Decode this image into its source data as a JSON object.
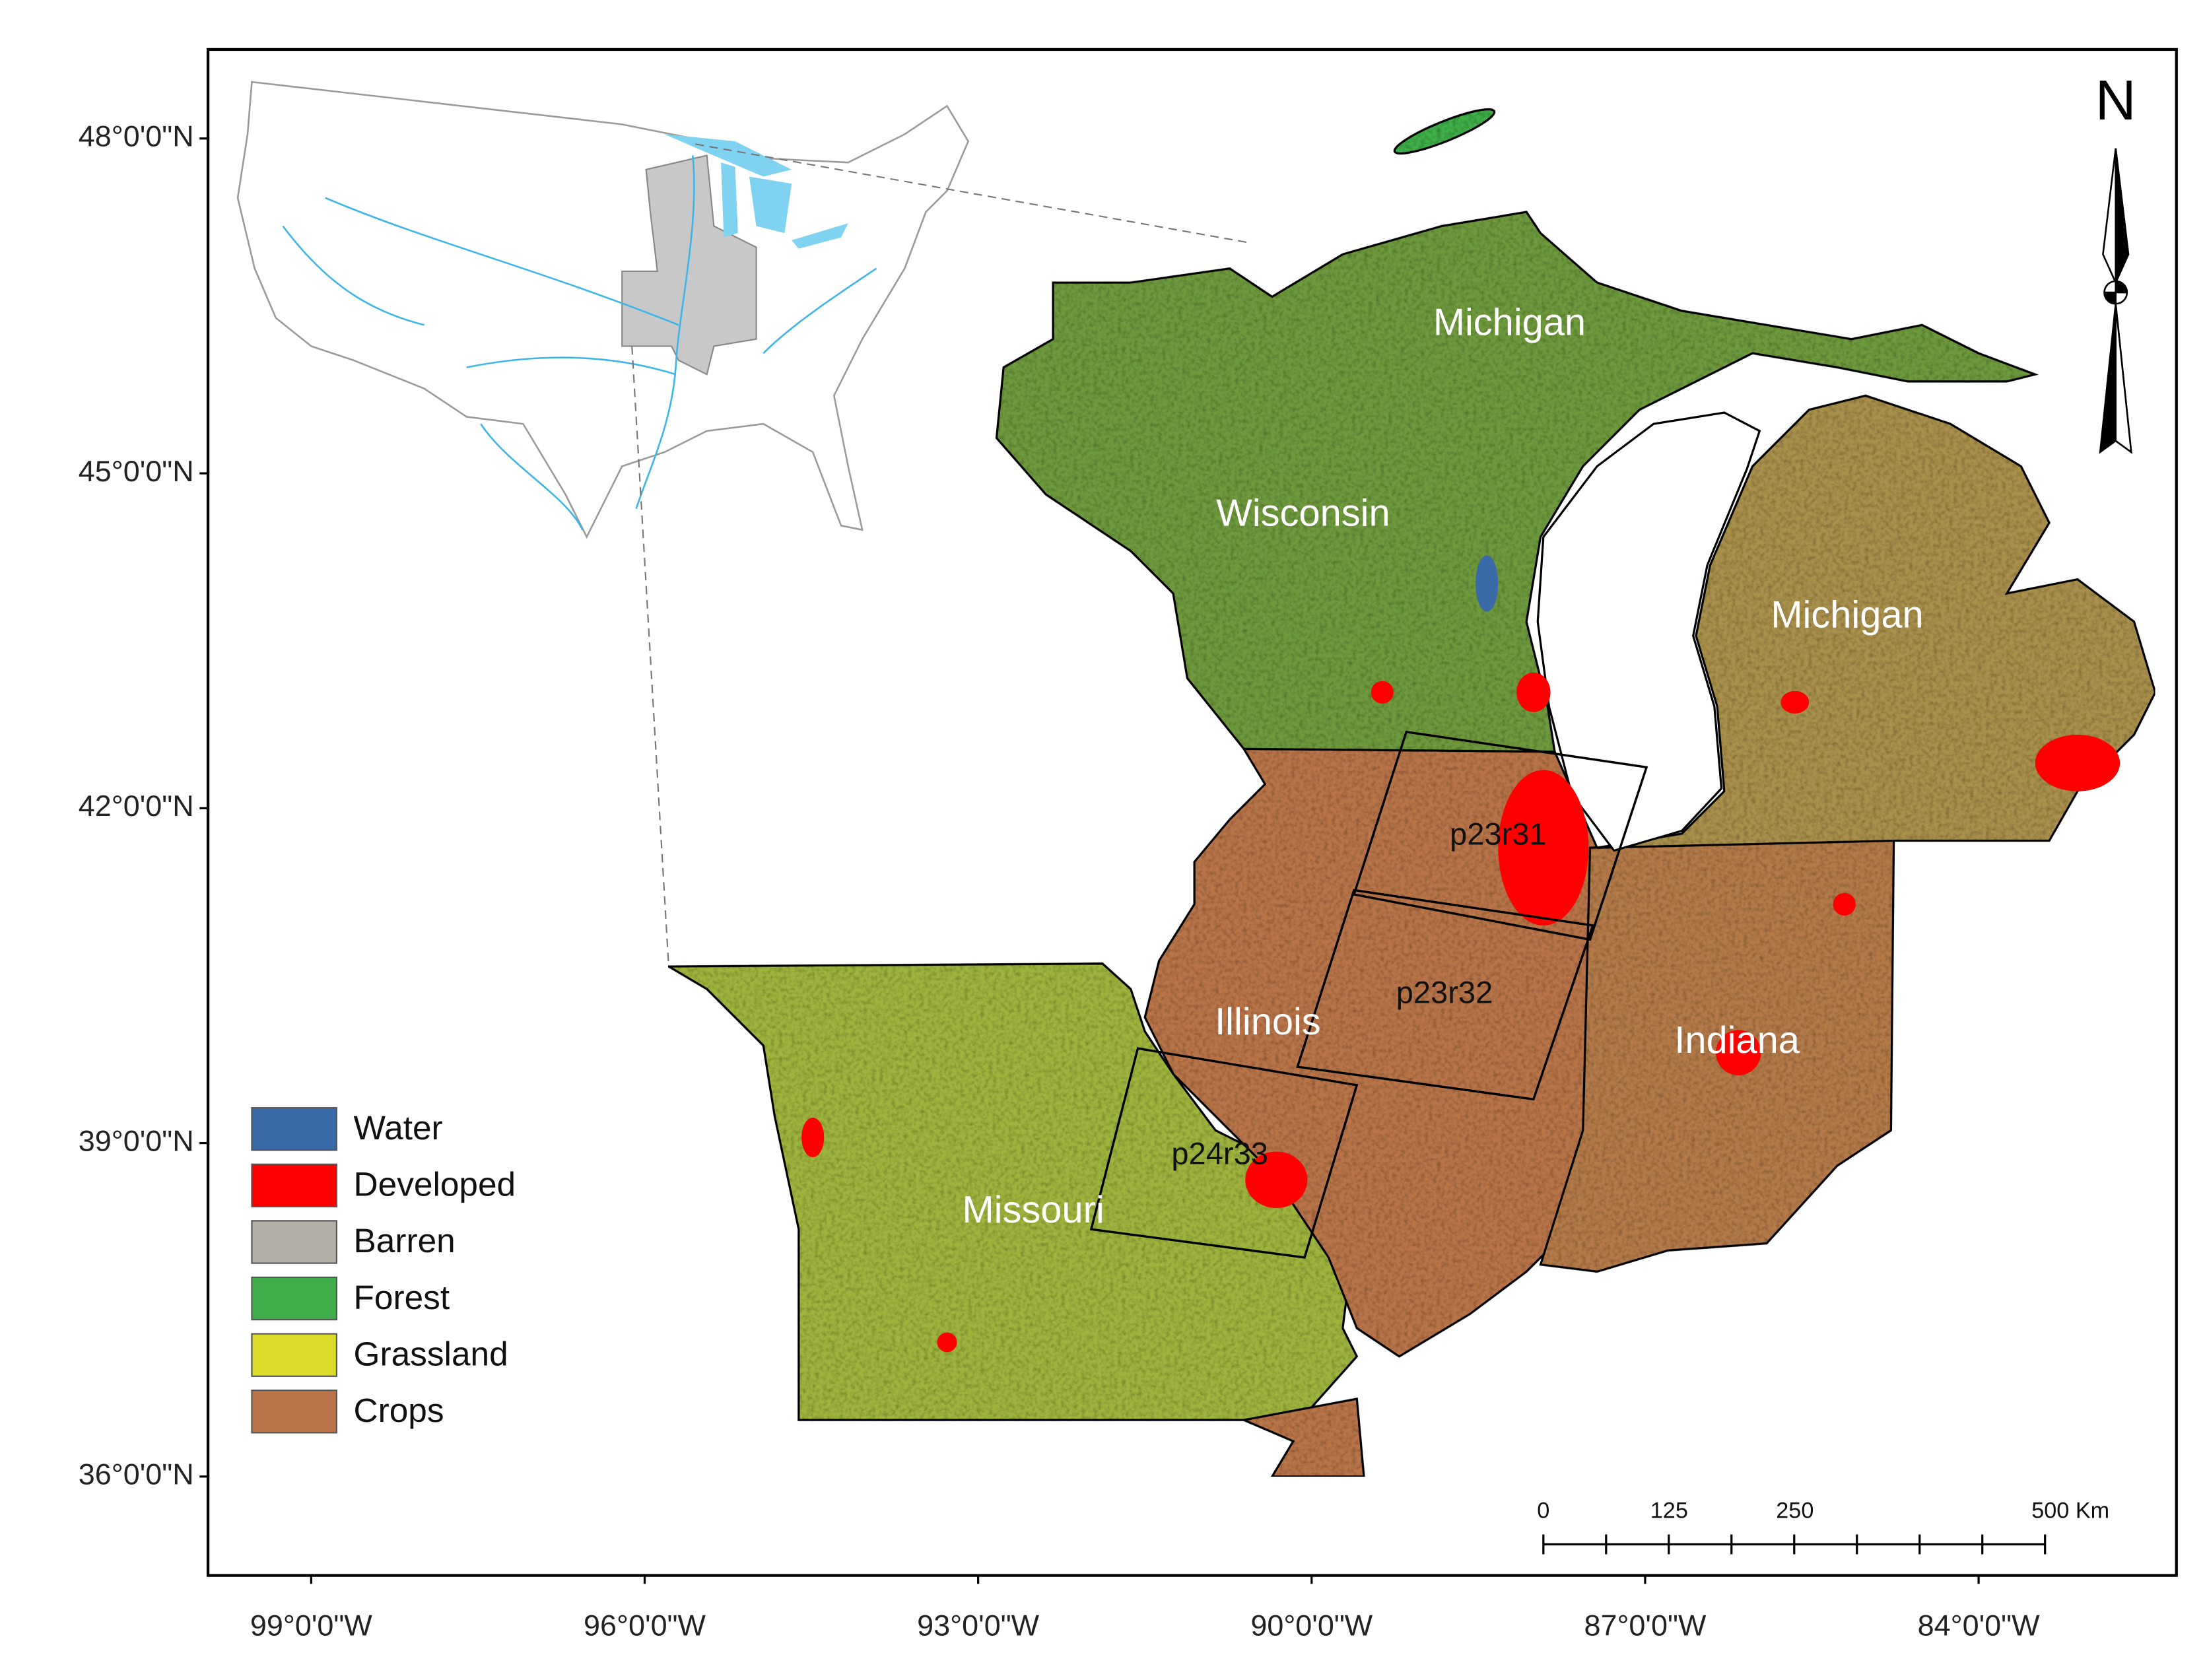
{
  "north": "N",
  "lat_labels": [
    "48°0'0\"N",
    "45°0'0\"N",
    "42°0'0\"N",
    "39°0'0\"N",
    "36°0'0\"N"
  ],
  "lon_labels": [
    "99°0'0\"W",
    "96°0'0\"W",
    "93°0'0\"W",
    "90°0'0\"W",
    "87°0'0\"W",
    "84°0'0\"W"
  ],
  "states": [
    "Michigan",
    "Wisconsin",
    "Michigan",
    "Illinois",
    "Indiana",
    "Missouri"
  ],
  "scenes": [
    "p23r31",
    "p23r32",
    "p24r33"
  ],
  "legend": [
    {
      "label": "Water",
      "color": "#3a6aa8"
    },
    {
      "label": "Developed",
      "color": "#ff0000"
    },
    {
      "label": "Barren",
      "color": "#b4b0a8"
    },
    {
      "label": "Forest",
      "color": "#3fae4a"
    },
    {
      "label": "Grassland",
      "color": "#dedc2a"
    },
    {
      "label": "Crops",
      "color": "#b9744a"
    }
  ],
  "scale_bar": [
    "0",
    "125",
    "250",
    "500 Km"
  ]
}
